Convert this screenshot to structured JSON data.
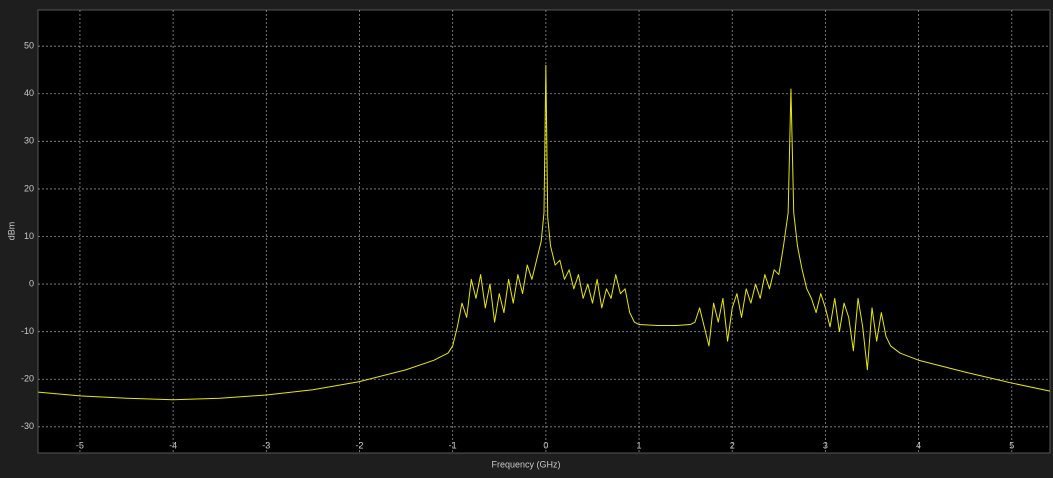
{
  "chart_data": {
    "type": "line",
    "x_label": "Frequency (GHz)",
    "y_label": "dBm",
    "xlim": [
      -5.45,
      5.41
    ],
    "ylim": [
      -35.5,
      57.6
    ],
    "xticks": [
      -5,
      -4,
      -3,
      -2,
      -1,
      0,
      1,
      2,
      3,
      4,
      5
    ],
    "yticks": [
      -30,
      -20,
      -10,
      0,
      10,
      20,
      30,
      40,
      50
    ],
    "grid": true,
    "series": [
      {
        "color": "#e8e800",
        "x": [
          -5.45,
          -5,
          -4.5,
          -4,
          -3.5,
          -3,
          -2.5,
          -2,
          -1.5,
          -1.2,
          -1.05,
          -1.0,
          -0.95,
          -0.9,
          -0.85,
          -0.8,
          -0.75,
          -0.7,
          -0.65,
          -0.6,
          -0.55,
          -0.5,
          -0.45,
          -0.4,
          -0.35,
          -0.3,
          -0.25,
          -0.2,
          -0.15,
          -0.1,
          -0.05,
          -0.02,
          0,
          0.02,
          0.05,
          0.1,
          0.15,
          0.2,
          0.25,
          0.3,
          0.35,
          0.4,
          0.45,
          0.5,
          0.55,
          0.6,
          0.65,
          0.7,
          0.75,
          0.8,
          0.85,
          0.9,
          0.95,
          1.0,
          1.2,
          1.4,
          1.55,
          1.6,
          1.65,
          1.7,
          1.75,
          1.8,
          1.85,
          1.9,
          1.95,
          2.0,
          2.05,
          2.1,
          2.15,
          2.2,
          2.25,
          2.3,
          2.35,
          2.4,
          2.45,
          2.5,
          2.55,
          2.6,
          2.63,
          2.66,
          2.7,
          2.75,
          2.8,
          2.85,
          2.9,
          2.95,
          3.0,
          3.05,
          3.1,
          3.15,
          3.2,
          3.25,
          3.3,
          3.35,
          3.4,
          3.45,
          3.5,
          3.55,
          3.6,
          3.65,
          3.7,
          3.8,
          4.0,
          4.5,
          5.0,
          5.41
        ],
        "values": [
          -22.7,
          -23.5,
          -24.0,
          -24.3,
          -24.0,
          -23.3,
          -22.2,
          -20.5,
          -18,
          -16,
          -14.5,
          -13,
          -9,
          -4,
          -7,
          1,
          -3,
          2,
          -5,
          0,
          -8,
          -2,
          -6,
          1,
          -4,
          2,
          -2,
          4,
          1,
          5,
          9,
          15,
          46,
          14,
          8,
          4,
          5,
          1,
          3,
          -1,
          2,
          -3,
          0,
          -4,
          1,
          -5,
          -1,
          -3,
          2,
          -2,
          -1,
          -6,
          -8,
          -8.5,
          -8.7,
          -8.7,
          -8.5,
          -8,
          -5,
          -9,
          -13,
          -4,
          -8,
          -3,
          -12,
          -5,
          -2,
          -7,
          -1,
          -4,
          0,
          -3,
          2,
          -1,
          3,
          2,
          8,
          15,
          41,
          15,
          8,
          3,
          -1,
          -3,
          -6,
          -2,
          -5,
          -9,
          -3,
          -10,
          -4,
          -7,
          -14,
          -3,
          -9,
          -18,
          -5,
          -12,
          -6,
          -11,
          -13,
          -14.5,
          -16,
          -18.5,
          -20.8,
          -22.5
        ]
      }
    ]
  }
}
